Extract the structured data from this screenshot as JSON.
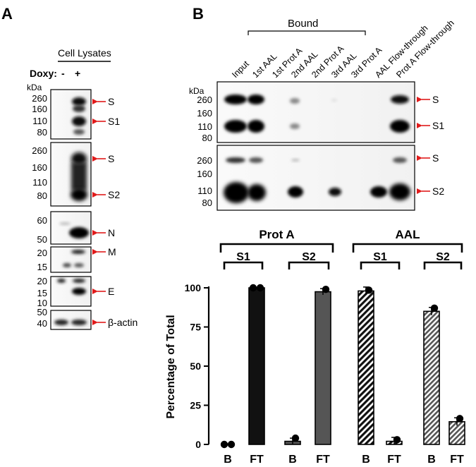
{
  "panel_a": {
    "letter": "A",
    "group_label": "Cell Lysates",
    "doxy_label": "Doxy:",
    "doxy_minus": "-",
    "doxy_plus": "+",
    "kda_label": "kDa",
    "blots": [
      {
        "markers": [
          "260",
          "160",
          "110",
          "80"
        ],
        "bands": [
          "S",
          "S1"
        ]
      },
      {
        "markers": [
          "260",
          "160",
          "110",
          "80"
        ],
        "bands": [
          "S",
          "S2"
        ]
      },
      {
        "markers": [
          "60",
          "50"
        ],
        "bands": [
          "N"
        ]
      },
      {
        "markers": [
          "20",
          "15"
        ],
        "bands": [
          "M"
        ]
      },
      {
        "markers": [
          "20",
          "15",
          "10"
        ],
        "bands": [
          "E"
        ]
      },
      {
        "markers": [
          "50",
          "40"
        ],
        "bands": [
          "β-actin"
        ]
      }
    ]
  },
  "panel_b": {
    "letter": "B",
    "bound_label": "Bound",
    "kda_label": "kDa",
    "lanes": [
      "Input",
      "1st AAL",
      "1st Prot A",
      "2nd AAL",
      "2nd Prot A",
      "3rd AAL",
      "3rd Prot A",
      "AAL Flow-through",
      "Prot A Flow-through"
    ],
    "blots": [
      {
        "markers": [
          "260",
          "160",
          "110",
          "80"
        ],
        "bands": [
          "S",
          "S1"
        ]
      },
      {
        "markers": [
          "260",
          "160",
          "110",
          "80"
        ],
        "bands": [
          "S",
          "S2"
        ]
      }
    ]
  },
  "chart_data": {
    "type": "bar",
    "ylabel": "Percentage of Total",
    "ylim": [
      0,
      100
    ],
    "yticks": [
      0,
      25,
      50,
      75,
      100
    ],
    "groups": [
      {
        "name": "Prot A",
        "subgroups": [
          {
            "name": "S1",
            "pattern": "solid",
            "color": "#111111",
            "categories": [
              "B",
              "FT"
            ],
            "values": [
              0,
              100
            ],
            "errors": [
              0,
              0
            ],
            "points": [
              [
                0,
                0
              ],
              [
                100,
                100
              ]
            ]
          },
          {
            "name": "S2",
            "pattern": "solid",
            "color": "#555555",
            "categories": [
              "B",
              "FT"
            ],
            "values": [
              2,
              97.5
            ],
            "errors": [
              2,
              2
            ],
            "points": [
              [
                4
              ],
              [
                99
              ]
            ]
          }
        ]
      },
      {
        "name": "AAL",
        "subgroups": [
          {
            "name": "S1",
            "pattern": "stripe",
            "color": "#111111",
            "categories": [
              "B",
              "FT"
            ],
            "values": [
              98,
              2
            ],
            "errors": [
              2.5,
              2.5
            ],
            "points": [
              [
                98.5
              ],
              [
                3
              ]
            ]
          },
          {
            "name": "S2",
            "pattern": "stripe",
            "color": "#555555",
            "categories": [
              "B",
              "FT"
            ],
            "values": [
              85,
              14.5
            ],
            "errors": [
              2.5,
              2.5
            ],
            "points": [
              [
                87
              ],
              [
                16.5
              ]
            ]
          }
        ]
      }
    ]
  }
}
